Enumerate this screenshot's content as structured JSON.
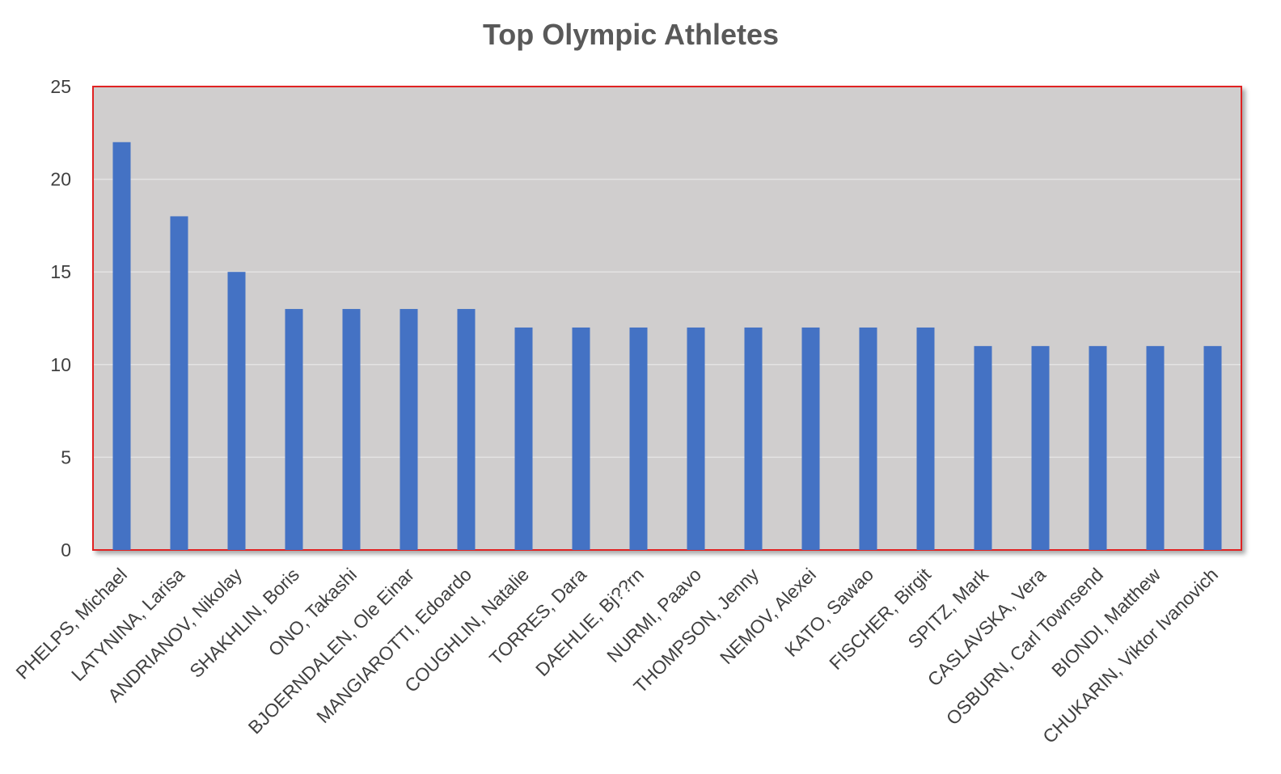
{
  "chart_data": {
    "type": "bar",
    "title": "Top Olympic Athletes",
    "xlabel": "",
    "ylabel": "",
    "ylim": [
      0,
      25
    ],
    "yticks": [
      0,
      5,
      10,
      15,
      20,
      25
    ],
    "grid": true,
    "legend": "none",
    "categories": [
      "PHELPS, Michael",
      "LATYNINA, Larisa",
      "ANDRIANOV, Nikolay",
      "SHAKHLIN, Boris",
      "ONO, Takashi",
      "BJOERNDALEN, Ole Einar",
      "MANGIAROTTI, Edoardo",
      "COUGHLIN, Natalie",
      "TORRES, Dara",
      "DAEHLIE, Bj??rn",
      "NURMI, Paavo",
      "THOMPSON, Jenny",
      "NEMOV, Alexei",
      "KATO, Sawao",
      "FISCHER, Birgit",
      "SPITZ, Mark",
      "CASLAVSKA, Vera",
      "OSBURN, Carl Townsend",
      "BIONDI, Matthew",
      "CHUKARIN, Viktor Ivanovich"
    ],
    "values": [
      22,
      18,
      15,
      13,
      13,
      13,
      13,
      12,
      12,
      12,
      12,
      12,
      12,
      12,
      12,
      11,
      11,
      11,
      11,
      11
    ],
    "colors": {
      "bar": "#4472C4",
      "plot_background": "#D0CECE",
      "plot_border": "#E02020",
      "gridline": "#E4E3E3",
      "text": "#404040"
    }
  }
}
